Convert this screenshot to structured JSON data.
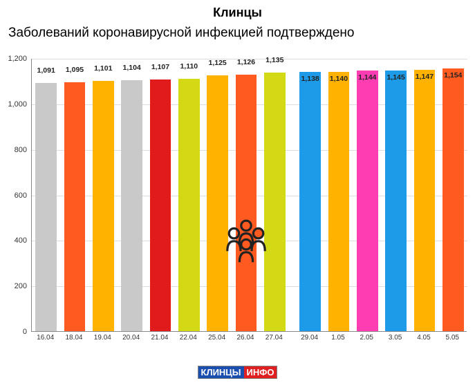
{
  "title": "Клинцы",
  "title_fontsize": 18,
  "subtitle": "Заболеваний коронавирусной инфекцией подтверждено",
  "subtitle_fontsize": 19,
  "chart": {
    "type": "bar",
    "ylim": [
      0,
      1200
    ],
    "ytick_step": 200,
    "yticks": [
      "0",
      "200",
      "400",
      "600",
      "800",
      "1,000",
      "1,200"
    ],
    "grid_color": "#dcdcdc",
    "axis_color": "#888888",
    "background_color": "#ffffff",
    "label_fontsize": 11,
    "bar_width_ratio": 0.74,
    "gap_after_index": 8,
    "categories": [
      "16.04",
      "18.04",
      "19.04",
      "20.04",
      "21.04",
      "22.04",
      "25.04",
      "26.04",
      "27.04",
      "29.04",
      "1.05",
      "2.05",
      "3.05",
      "4.05",
      "5.05"
    ],
    "values": [
      1091,
      1095,
      1101,
      1104,
      1107,
      1110,
      1125,
      1126,
      1135,
      1138,
      1140,
      1144,
      1145,
      1147,
      1154
    ],
    "value_labels": [
      "1,091",
      "1,095",
      "1,101",
      "1,104",
      "1,107",
      "1,110",
      "1,125",
      "1,126",
      "1,135",
      "1,138",
      "1,140",
      "1,144",
      "1,145",
      "1,147",
      "1,154"
    ],
    "bar_colors": [
      "#c9c9c9",
      "#ff5a1f",
      "#ffb300",
      "#c9c9c9",
      "#e11b1b",
      "#d4d915",
      "#ffb300",
      "#ff5a1f",
      "#d4d915",
      "#1e9be8",
      "#ffb300",
      "#ff3db2",
      "#1e9be8",
      "#ffb300",
      "#ff5a1f"
    ],
    "label_offsets_y": [
      -12,
      -12,
      -12,
      -12,
      -12,
      -12,
      -12,
      -12,
      -12,
      16,
      16,
      16,
      16,
      16,
      16
    ]
  },
  "icon": {
    "x_center_bar_index": 7,
    "y_value": 390,
    "color": "#222222"
  },
  "logo": {
    "left": "КЛИНЦЫ",
    "right": "ИНФО",
    "left_bg": "#1a4fb0",
    "right_bg": "#e02020"
  }
}
